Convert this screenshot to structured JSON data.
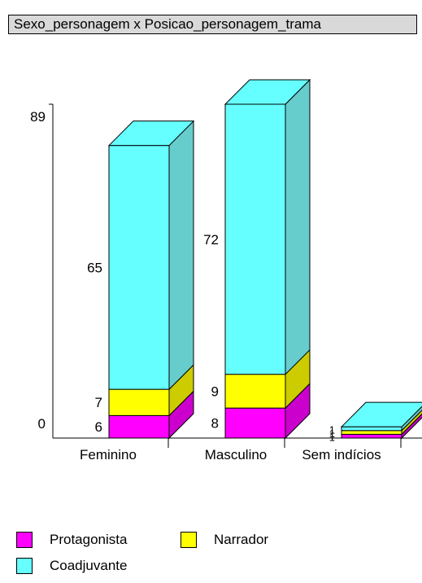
{
  "chart_data": {
    "type": "bar",
    "stacked": true,
    "three_d": true,
    "title": "Sexo_personagem x Posicao_personagem_trama",
    "categories": [
      "Feminino",
      "Masculino",
      "Sem indícios"
    ],
    "series": [
      {
        "name": "Protagonista",
        "color": "#ff00ff",
        "side_color": "#cc00cc",
        "values": [
          6,
          8,
          1
        ]
      },
      {
        "name": "Narrador",
        "color": "#ffff00",
        "side_color": "#cccc00",
        "values": [
          7,
          9,
          1
        ]
      },
      {
        "name": "Coadjuvante",
        "color": "#66ffff",
        "side_color": "#66cccc",
        "values": [
          65,
          72,
          1
        ]
      }
    ],
    "y_tick_labels": [
      "0",
      "89"
    ],
    "ylim": [
      0,
      89
    ],
    "xlabel": "",
    "ylabel": "",
    "grid": false,
    "legend_position": "bottom-left"
  }
}
